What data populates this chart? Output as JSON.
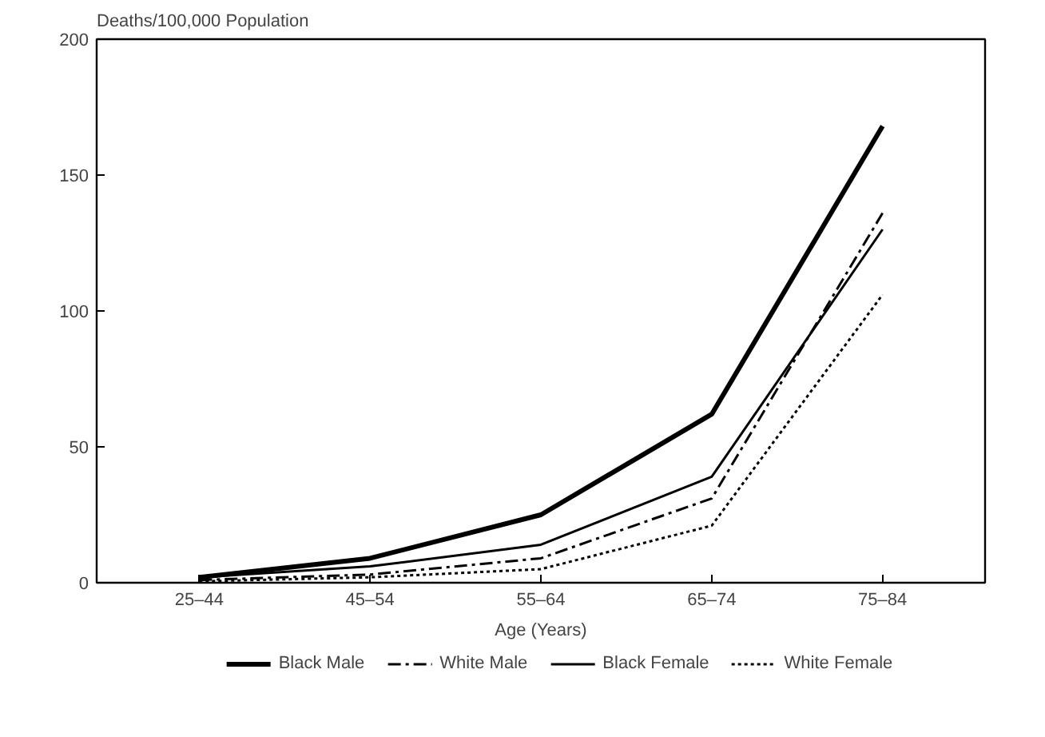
{
  "chart_data": {
    "type": "line",
    "ylabel": "Deaths/100,000 Population",
    "xlabel": "Age (Years)",
    "categories": [
      "25–44",
      "45–54",
      "55–64",
      "65–74",
      "75–84"
    ],
    "ylim": [
      0,
      200
    ],
    "yticks": [
      0,
      50,
      100,
      150,
      200
    ],
    "grid": false,
    "legend": "bottom",
    "series": [
      {
        "name": "Black Male",
        "color": "#000000",
        "line_style": "solid",
        "values": [
          2,
          9,
          25,
          62,
          168
        ]
      },
      {
        "name": "White Male",
        "color": "#000000",
        "line_style": "dashdot",
        "values": [
          1,
          3,
          9,
          31,
          136
        ]
      },
      {
        "name": "Black Female",
        "color": "#000000",
        "line_style": "solid",
        "values": [
          2,
          6,
          14,
          39,
          130
        ]
      },
      {
        "name": "White Female",
        "color": "#000000",
        "line_style": "dotted",
        "values": [
          0.5,
          2,
          5,
          21,
          106
        ]
      }
    ]
  }
}
